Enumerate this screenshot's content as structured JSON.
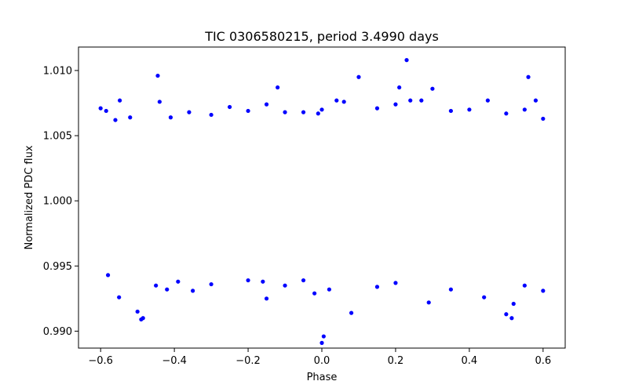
{
  "chart_data": {
    "type": "scatter",
    "title": "TIC 0306580215, period 3.4990 days",
    "xlabel": "Phase",
    "ylabel": "Normalized PDC flux",
    "xlim": [
      -0.66,
      0.66
    ],
    "ylim": [
      0.9887,
      1.0118
    ],
    "xticks": [
      -0.6,
      -0.4,
      -0.2,
      0.0,
      0.2,
      0.4,
      0.6
    ],
    "xtick_labels": [
      "−0.6",
      "−0.4",
      "−0.2",
      "0.0",
      "0.2",
      "0.4",
      "0.6"
    ],
    "yticks": [
      0.99,
      0.995,
      1.0,
      1.005,
      1.01
    ],
    "ytick_labels": [
      "0.990",
      "0.995",
      "1.000",
      "1.005",
      "1.010"
    ],
    "grid": false,
    "marker_color": "#0000ff",
    "series": [
      {
        "points": [
          [
            -0.6,
            1.0071
          ],
          [
            -0.585,
            1.0069
          ],
          [
            -0.56,
            1.0062
          ],
          [
            -0.548,
            1.0077
          ],
          [
            -0.52,
            1.0064
          ],
          [
            -0.445,
            1.0096
          ],
          [
            -0.44,
            1.0076
          ],
          [
            -0.41,
            1.0064
          ],
          [
            -0.36,
            1.0068
          ],
          [
            -0.3,
            1.0066
          ],
          [
            -0.25,
            1.0072
          ],
          [
            -0.2,
            1.0069
          ],
          [
            -0.15,
            1.0074
          ],
          [
            -0.12,
            1.0087
          ],
          [
            -0.1,
            1.0068
          ],
          [
            -0.05,
            1.0068
          ],
          [
            -0.01,
            1.0067
          ],
          [
            0.0,
            1.007
          ],
          [
            0.04,
            1.0077
          ],
          [
            0.06,
            1.0076
          ],
          [
            0.1,
            1.0095
          ],
          [
            0.15,
            1.0071
          ],
          [
            0.2,
            1.0074
          ],
          [
            0.21,
            1.0087
          ],
          [
            0.23,
            1.0108
          ],
          [
            0.24,
            1.0077
          ],
          [
            0.27,
            1.0077
          ],
          [
            0.3,
            1.0086
          ],
          [
            0.35,
            1.0069
          ],
          [
            0.4,
            1.007
          ],
          [
            0.45,
            1.0077
          ],
          [
            0.5,
            1.0067
          ],
          [
            0.55,
            1.007
          ],
          [
            0.56,
            1.0095
          ],
          [
            0.58,
            1.0077
          ],
          [
            0.6,
            1.0063
          ],
          [
            -0.58,
            0.9943
          ],
          [
            -0.55,
            0.9926
          ],
          [
            -0.5,
            0.9915
          ],
          [
            -0.49,
            0.9909
          ],
          [
            -0.485,
            0.991
          ],
          [
            -0.45,
            0.9935
          ],
          [
            -0.42,
            0.9932
          ],
          [
            -0.39,
            0.9938
          ],
          [
            -0.35,
            0.9931
          ],
          [
            -0.3,
            0.9936
          ],
          [
            -0.2,
            0.9939
          ],
          [
            -0.16,
            0.9938
          ],
          [
            -0.15,
            0.9925
          ],
          [
            -0.1,
            0.9935
          ],
          [
            -0.05,
            0.9939
          ],
          [
            -0.02,
            0.9929
          ],
          [
            0.0,
            0.9891
          ],
          [
            0.005,
            0.9896
          ],
          [
            0.02,
            0.9932
          ],
          [
            0.08,
            0.9914
          ],
          [
            0.15,
            0.9934
          ],
          [
            0.2,
            0.9937
          ],
          [
            0.29,
            0.9922
          ],
          [
            0.35,
            0.9932
          ],
          [
            0.44,
            0.9926
          ],
          [
            0.5,
            0.9913
          ],
          [
            0.515,
            0.991
          ],
          [
            0.52,
            0.9921
          ],
          [
            0.55,
            0.9935
          ],
          [
            0.6,
            0.9931
          ]
        ]
      }
    ]
  }
}
